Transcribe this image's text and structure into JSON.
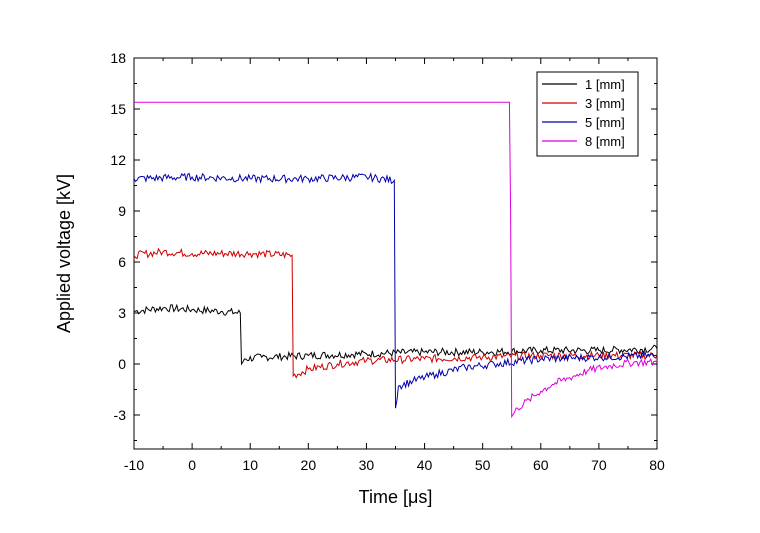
{
  "chart_data": {
    "type": "line",
    "title": "",
    "xlabel": "Time [μs]",
    "ylabel": "Applied voltage [kV]",
    "xlim": [
      -10,
      80
    ],
    "ylim": [
      -5,
      18
    ],
    "xticks": [
      -10,
      0,
      10,
      20,
      30,
      40,
      50,
      60,
      70,
      80
    ],
    "yticks": [
      -3,
      0,
      3,
      6,
      9,
      12,
      15,
      18
    ],
    "grid": false,
    "legend_position": "top-right",
    "series": [
      {
        "name": "1 [mm]",
        "color": "#000000",
        "points": [
          [
            -10,
            3.1
          ],
          [
            -5,
            3.3
          ],
          [
            0,
            3.2
          ],
          [
            5,
            3.1
          ],
          [
            8.3,
            3.0
          ],
          [
            8.5,
            0.0
          ],
          [
            9,
            0.3
          ],
          [
            12,
            0.4
          ],
          [
            20,
            0.5
          ],
          [
            30,
            0.6
          ],
          [
            40,
            0.7
          ],
          [
            50,
            0.7
          ],
          [
            60,
            0.8
          ],
          [
            70,
            0.8
          ],
          [
            80,
            0.9
          ]
        ]
      },
      {
        "name": "3 [mm]",
        "color": "#cc0000",
        "points": [
          [
            -10,
            6.4
          ],
          [
            -5,
            6.6
          ],
          [
            0,
            6.5
          ],
          [
            10,
            6.5
          ],
          [
            17.2,
            6.4
          ],
          [
            17.4,
            -0.7
          ],
          [
            20,
            -0.3
          ],
          [
            25,
            0.0
          ],
          [
            30,
            0.2
          ],
          [
            40,
            0.3
          ],
          [
            50,
            0.4
          ],
          [
            60,
            0.5
          ],
          [
            70,
            0.5
          ],
          [
            80,
            0.5
          ]
        ]
      },
      {
        "name": "5 [mm]",
        "color": "#0000aa",
        "points": [
          [
            -10,
            10.9
          ],
          [
            0,
            11.0
          ],
          [
            10,
            10.9
          ],
          [
            20,
            10.9
          ],
          [
            30,
            11.0
          ],
          [
            34.8,
            10.8
          ],
          [
            35.0,
            -2.6
          ],
          [
            35.5,
            -1.3
          ],
          [
            38,
            -1.0
          ],
          [
            42,
            -0.6
          ],
          [
            47,
            -0.2
          ],
          [
            52,
            0.0
          ],
          [
            60,
            0.3
          ],
          [
            70,
            0.4
          ],
          [
            80,
            0.5
          ]
        ]
      },
      {
        "name": "8 [mm]",
        "color": "#dd00dd",
        "points": [
          [
            -10,
            15.4
          ],
          [
            54.6,
            15.4
          ],
          [
            54.8,
            9.0
          ],
          [
            55.0,
            -3.1
          ],
          [
            56,
            -2.6
          ],
          [
            58,
            -2.1
          ],
          [
            60,
            -1.6
          ],
          [
            62,
            -1.2
          ],
          [
            65,
            -0.8
          ],
          [
            68,
            -0.4
          ],
          [
            72,
            -0.1
          ],
          [
            76,
            0.1
          ],
          [
            80,
            0.1
          ]
        ]
      }
    ]
  }
}
